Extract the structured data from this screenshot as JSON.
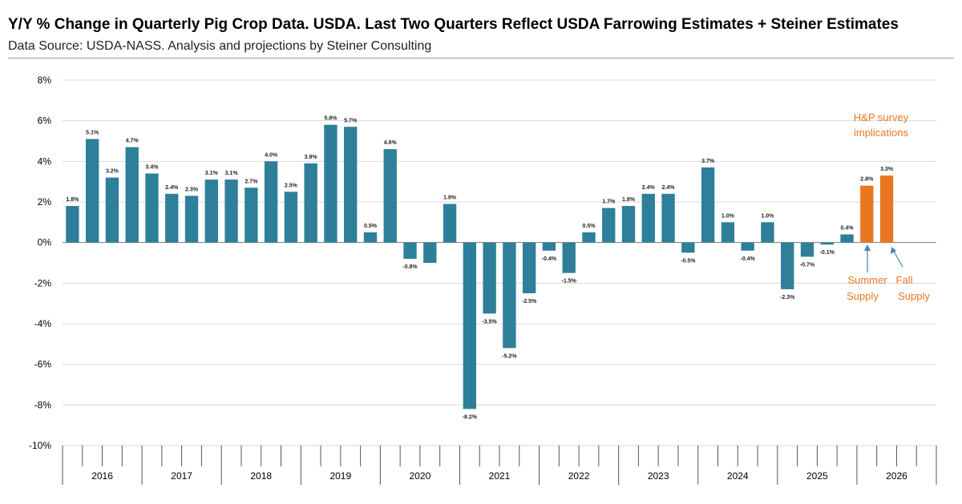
{
  "title": "Y/Y % Change in Quarterly Pig Crop Data.  USDA. Last Two Quarters Reflect USDA Farrowing Estimates + Steiner Estimates",
  "subtitle": "Data Source:  USDA-NASS. Analysis and projections by Steiner Consulting",
  "colors": {
    "historical": "#2e7f99",
    "projection": "#e87722",
    "grid": "#d9d9d9",
    "axis": "#808080"
  },
  "chart_data": {
    "type": "bar",
    "ylim": [
      -10,
      8
    ],
    "yticks": [
      8,
      6,
      4,
      2,
      0,
      -2,
      -4,
      -6,
      -8,
      -10
    ],
    "ytick_labels": [
      "8%",
      "6%",
      "4%",
      "2%",
      "0%",
      "-2%",
      "-4%",
      "-6%",
      "-8%",
      "-10%"
    ],
    "grid": true,
    "years": [
      "2016",
      "2017",
      "2018",
      "2019",
      "2020",
      "2021",
      "2022",
      "2023",
      "2024",
      "2025",
      "2026"
    ],
    "quarters_per_year": 4,
    "values": [
      1.8,
      5.1,
      3.2,
      4.7,
      3.4,
      2.4,
      2.3,
      3.1,
      3.1,
      2.7,
      4.0,
      2.5,
      3.9,
      5.8,
      5.7,
      0.5,
      4.6,
      -0.8,
      -1.0,
      1.9,
      -8.2,
      -3.5,
      -5.2,
      -2.5,
      -0.4,
      -1.5,
      0.5,
      1.7,
      1.8,
      2.4,
      2.4,
      -0.5,
      3.7,
      1.0,
      -0.4,
      1.0,
      -2.3,
      -0.7,
      -0.1,
      0.4,
      2.8,
      3.3
    ],
    "labels": [
      "1.8%",
      "5.1%",
      "3.2%",
      "4.7%",
      "3.4%",
      "2.4%",
      "2.3%",
      "3.1%",
      "3.1%",
      "2.7%",
      "4.0%",
      "2.5%",
      "3.9%",
      "5.8%",
      "5.7%",
      "0.5%",
      "4.6%",
      "-0.8%",
      "",
      "1.9%",
      "-8.2%",
      "-3.5%",
      "-5.2%",
      "-2.5%",
      "-0.4%",
      "-1.5%",
      "0.5%",
      "1.7%",
      "1.8%",
      "2.4%",
      "2.4%",
      "-0.5%",
      "3.7%",
      "1.0%",
      "-0.4%",
      "1.0%",
      "-2.3%",
      "-0.7%",
      "-0.1%",
      "0.4%",
      "2.8%",
      "3.3%"
    ],
    "projection_count": 2
  },
  "annotations": {
    "hp_line1": "H&P survey",
    "hp_line2": "implications",
    "summer_line1": "Summer",
    "summer_line2": "Supply",
    "fall_line1": "Fall",
    "fall_line2": "Supply"
  }
}
